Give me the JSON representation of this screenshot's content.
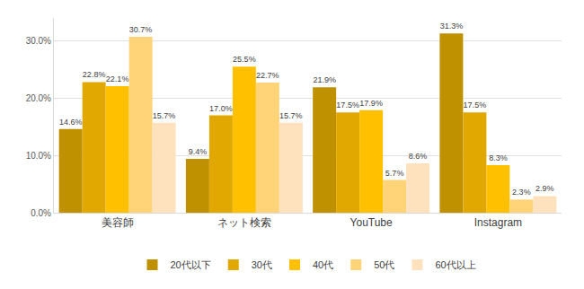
{
  "chart_data": {
    "type": "bar",
    "categories": [
      "美容師",
      "ネット検索",
      "YouTube",
      "Instagram"
    ],
    "series": [
      {
        "name": "20代以下",
        "color": "#bf9000",
        "values": [
          14.6,
          9.4,
          21.9,
          31.3
        ],
        "value_labels": [
          "14.6%",
          "9.4%",
          "21.9%",
          "31.3%"
        ]
      },
      {
        "name": "30代",
        "color": "#e0a800",
        "values": [
          22.8,
          17.0,
          17.5,
          17.5
        ],
        "value_labels": [
          "22.8%",
          "17.0%",
          "17.5%",
          "17.5%"
        ]
      },
      {
        "name": "40代",
        "color": "#ffc000",
        "values": [
          22.1,
          25.5,
          17.9,
          8.3
        ],
        "value_labels": [
          "22.1%",
          "25.5%",
          "17.9%",
          "8.3%"
        ]
      },
      {
        "name": "50代",
        "color": "#ffd478",
        "values": [
          30.7,
          22.7,
          5.7,
          2.3
        ],
        "value_labels": [
          "30.7%",
          "22.7%",
          "5.7%",
          "2.3%"
        ]
      },
      {
        "name": "60代以上",
        "color": "#fde2bd",
        "values": [
          15.7,
          15.7,
          8.6,
          2.9
        ],
        "value_labels": [
          "15.7%",
          "15.7%",
          "8.6%",
          "2.9%"
        ]
      }
    ],
    "ylim": [
      0,
      34
    ],
    "yticks": [
      {
        "value": 0,
        "label": "0.0%"
      },
      {
        "value": 10,
        "label": "10.0%"
      },
      {
        "value": 20,
        "label": "20.0%"
      },
      {
        "value": 30,
        "label": "30.0%"
      }
    ],
    "grid": true,
    "legend": "bottom",
    "data_labels": true
  }
}
